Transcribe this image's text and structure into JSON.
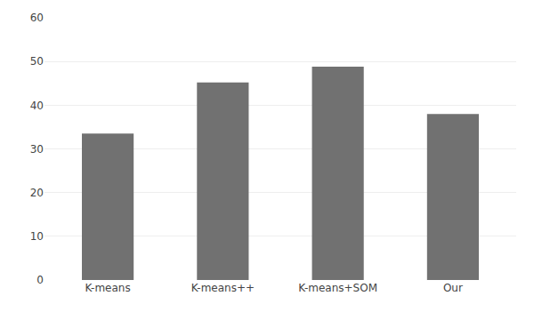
{
  "chart_data": {
    "type": "bar",
    "categories": [
      "K-means",
      "K-means++",
      "K-means+SOM",
      "Our"
    ],
    "values": [
      33.5,
      45.2,
      48.8,
      38.0
    ],
    "color": "#717171",
    "ylim": [
      0,
      60
    ],
    "yticks": [
      0,
      10,
      20,
      30,
      40,
      50,
      60
    ],
    "grid": true
  }
}
